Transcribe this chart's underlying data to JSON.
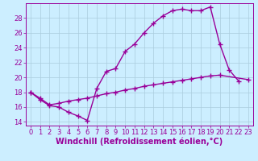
{
  "line1_x": [
    0,
    1,
    2,
    3,
    4,
    5,
    6,
    7,
    8,
    9,
    10,
    11,
    12,
    13,
    14,
    15,
    16,
    17,
    18,
    19,
    20,
    21,
    22
  ],
  "line1_y": [
    18.0,
    17.0,
    16.2,
    16.0,
    15.3,
    14.8,
    14.2,
    18.5,
    20.8,
    21.2,
    23.5,
    24.5,
    26.0,
    27.3,
    28.3,
    29.0,
    29.2,
    29.0,
    29.0,
    29.5,
    24.5,
    21.0,
    19.5
  ],
  "line2_x": [
    0,
    1,
    2,
    3,
    4,
    5,
    6,
    7,
    8,
    9,
    10,
    11,
    12,
    13,
    14,
    15,
    16,
    17,
    18,
    19,
    20,
    23
  ],
  "line2_y": [
    18.0,
    17.2,
    16.3,
    16.5,
    16.8,
    17.0,
    17.2,
    17.5,
    17.8,
    18.0,
    18.3,
    18.5,
    18.8,
    19.0,
    19.2,
    19.4,
    19.6,
    19.8,
    20.0,
    20.2,
    20.3,
    19.7
  ],
  "color": "#990099",
  "bg_color": "#cceeff",
  "grid_color": "#aaccdd",
  "xlabel": "Windchill (Refroidissement éolien,°C)",
  "xlim": [
    -0.5,
    23.5
  ],
  "ylim": [
    13.5,
    30.0
  ],
  "yticks": [
    14,
    16,
    18,
    20,
    22,
    24,
    26,
    28
  ],
  "xticks": [
    0,
    1,
    2,
    3,
    4,
    5,
    6,
    7,
    8,
    9,
    10,
    11,
    12,
    13,
    14,
    15,
    16,
    17,
    18,
    19,
    20,
    21,
    22,
    23
  ],
  "fontsize": 6,
  "marker": "+",
  "markersize": 4,
  "linewidth": 1.0
}
